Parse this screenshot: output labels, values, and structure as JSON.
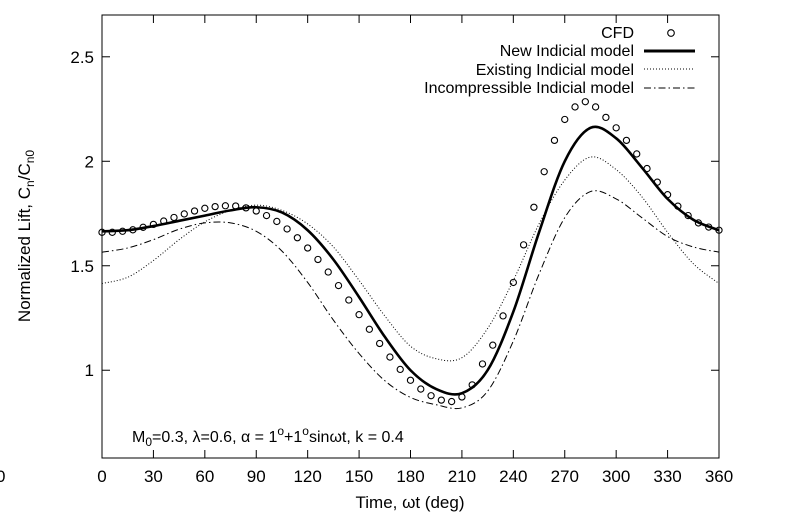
{
  "chart_data": {
    "type": "line",
    "xlabel": "Time, ωt (deg)",
    "ylabel": "Normalized Lift, C",
    "ylabel_sub1": "n",
    "ylabel_mid": "/C",
    "ylabel_sub2": "n0",
    "xlim": [
      0,
      360
    ],
    "ylim": [
      0.58,
      2.7
    ],
    "xticks": [
      0,
      30,
      60,
      90,
      120,
      150,
      180,
      210,
      240,
      270,
      300,
      330,
      360
    ],
    "yticks": [
      1,
      1.5,
      2,
      2.5
    ],
    "ytick_labels": [
      "1",
      "1.5",
      "2",
      "2.5"
    ],
    "left_edge_label": "0",
    "grid": false,
    "legend_position": "top-right",
    "annotation": {
      "p1": "M",
      "p1sub": "0",
      "p2": "=0.3, λ=0.6, α = 1",
      "p2sup": "o",
      "p3": "+1",
      "p3sup": "o",
      "p4": "sinωt, k = 0.4"
    },
    "series": [
      {
        "name": "CFD",
        "style": "circles",
        "x": [
          0,
          6,
          12,
          18,
          24,
          30,
          36,
          42,
          48,
          54,
          60,
          66,
          72,
          78,
          84,
          90,
          96,
          102,
          108,
          114,
          120,
          126,
          132,
          138,
          144,
          150,
          156,
          162,
          168,
          174,
          180,
          186,
          192,
          198,
          204,
          210,
          216,
          222,
          228,
          234,
          240,
          246,
          252,
          258,
          264,
          270,
          276,
          282,
          288,
          294,
          300,
          306,
          312,
          318,
          324,
          330,
          336,
          342,
          348,
          354,
          360
        ],
        "y": [
          1.66,
          1.66,
          1.665,
          1.672,
          1.684,
          1.698,
          1.714,
          1.731,
          1.748,
          1.762,
          1.775,
          1.783,
          1.787,
          1.786,
          1.777,
          1.762,
          1.74,
          1.712,
          1.676,
          1.634,
          1.585,
          1.53,
          1.47,
          1.405,
          1.336,
          1.266,
          1.196,
          1.128,
          1.063,
          1.004,
          0.952,
          0.91,
          0.878,
          0.857,
          0.85,
          0.872,
          0.93,
          1.03,
          1.12,
          1.26,
          1.42,
          1.6,
          1.78,
          1.95,
          2.1,
          2.2,
          2.26,
          2.285,
          2.26,
          2.21,
          2.16,
          2.1,
          2.035,
          1.965,
          1.9,
          1.84,
          1.785,
          1.74,
          1.705,
          1.685,
          1.67
        ]
      },
      {
        "name": "New Indicial model",
        "style": "solid",
        "x": [
          0,
          15,
          30,
          45,
          60,
          75,
          90,
          105,
          120,
          135,
          150,
          165,
          180,
          195,
          210,
          225,
          240,
          255,
          270,
          285,
          300,
          315,
          330,
          345,
          360
        ],
        "y": [
          1.665,
          1.67,
          1.69,
          1.715,
          1.74,
          1.765,
          1.78,
          1.755,
          1.67,
          1.53,
          1.35,
          1.16,
          1.0,
          0.91,
          0.89,
          1.0,
          1.28,
          1.66,
          2.0,
          2.16,
          2.11,
          1.97,
          1.82,
          1.72,
          1.67
        ]
      },
      {
        "name": "Existing Indicial model",
        "style": "dotted",
        "x": [
          0,
          15,
          30,
          45,
          60,
          75,
          90,
          105,
          120,
          135,
          150,
          165,
          180,
          195,
          210,
          225,
          240,
          255,
          270,
          285,
          300,
          315,
          330,
          345,
          360
        ],
        "y": [
          1.415,
          1.445,
          1.525,
          1.625,
          1.71,
          1.765,
          1.79,
          1.765,
          1.7,
          1.59,
          1.43,
          1.26,
          1.115,
          1.055,
          1.06,
          1.2,
          1.43,
          1.7,
          1.91,
          2.02,
          1.96,
          1.83,
          1.66,
          1.51,
          1.415
        ]
      },
      {
        "name": "Incompressible Indicial model",
        "style": "dashdot",
        "x": [
          0,
          15,
          30,
          45,
          60,
          75,
          90,
          105,
          120,
          135,
          150,
          165,
          180,
          195,
          210,
          225,
          240,
          255,
          270,
          285,
          300,
          315,
          330,
          345,
          360
        ],
        "y": [
          1.565,
          1.585,
          1.625,
          1.675,
          1.705,
          1.705,
          1.665,
          1.57,
          1.42,
          1.24,
          1.08,
          0.95,
          0.87,
          0.835,
          0.82,
          0.9,
          1.14,
          1.46,
          1.73,
          1.855,
          1.82,
          1.73,
          1.64,
          1.59,
          1.565
        ]
      }
    ]
  }
}
